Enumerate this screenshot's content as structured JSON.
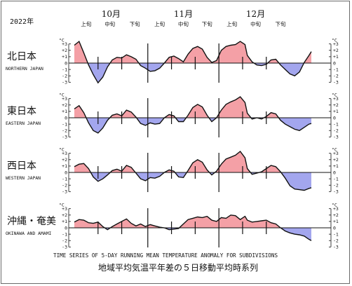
{
  "header": {
    "year": "2022年",
    "months": [
      "10月",
      "11月",
      "12月"
    ],
    "periods": [
      "上旬",
      "中旬",
      "下旬",
      "上旬",
      "中旬",
      "下旬",
      "上旬",
      "中旬",
      "下旬"
    ]
  },
  "axis": {
    "unit": "°C",
    "ticks": [
      "+3",
      "+2",
      "+1",
      "0",
      "-1",
      "-2",
      "-3"
    ]
  },
  "caption": {
    "english": "TIME SERIES OF 5-DAY RUNNING MEAN TEMPERATURE ANOMALY FOR SUBDIVISIONS",
    "japanese": "地域平均気温平年差の５日移動平均時系列"
  },
  "colors": {
    "positive": "#f4a0a6",
    "negative": "#a3a6ee",
    "line": "#111111"
  },
  "chart_data": {
    "type": "area",
    "x_unit": "day index from 2022-10-01",
    "ylim": [
      -3,
      3
    ],
    "yticks": [
      3,
      2,
      1,
      0,
      -1,
      -2,
      -3
    ],
    "grid": false,
    "panels": [
      {
        "name_jp": "北日本",
        "name_en": "NORTHERN JAPAN",
        "points": [
          [
            0,
            2.8
          ],
          [
            2,
            3.4
          ],
          [
            4,
            1.6
          ],
          [
            6,
            -0.3
          ],
          [
            8,
            -1.8
          ],
          [
            10,
            -3.1
          ],
          [
            12,
            -2.2
          ],
          [
            14,
            -0.6
          ],
          [
            16,
            0.5
          ],
          [
            18,
            0.9
          ],
          [
            20,
            0.8
          ],
          [
            22,
            1.3
          ],
          [
            24,
            1.0
          ],
          [
            26,
            0.6
          ],
          [
            28,
            -0.4
          ],
          [
            30,
            -0.8
          ],
          [
            32,
            -1.3
          ],
          [
            34,
            -1.2
          ],
          [
            36,
            -0.8
          ],
          [
            38,
            0.0
          ],
          [
            40,
            0.9
          ],
          [
            42,
            1.1
          ],
          [
            44,
            0.7
          ],
          [
            46,
            0.2
          ],
          [
            48,
            1.4
          ],
          [
            50,
            2.3
          ],
          [
            52,
            2.6
          ],
          [
            54,
            2.2
          ],
          [
            56,
            0.9
          ],
          [
            58,
            0.1
          ],
          [
            60,
            0.4
          ],
          [
            62,
            2.0
          ],
          [
            64,
            2.6
          ],
          [
            66,
            2.8
          ],
          [
            68,
            2.9
          ],
          [
            70,
            3.4
          ],
          [
            72,
            2.9
          ],
          [
            73,
            1.2
          ],
          [
            75,
            0.2
          ],
          [
            77,
            -0.3
          ],
          [
            79,
            -0.4
          ],
          [
            81,
            -0.2
          ],
          [
            83,
            0.5
          ],
          [
            85,
            0.6
          ],
          [
            87,
            -0.3
          ],
          [
            89,
            -1.0
          ],
          [
            91,
            -1.7
          ],
          [
            93,
            -2.0
          ],
          [
            95,
            -1.4
          ],
          [
            97,
            0.1
          ],
          [
            99,
            1.2
          ],
          [
            100,
            1.8
          ]
        ]
      },
      {
        "name_jp": "東日本",
        "name_en": "EASTERN JAPAN",
        "points": [
          [
            0,
            1.4
          ],
          [
            2,
            1.9
          ],
          [
            4,
            0.8
          ],
          [
            6,
            -0.8
          ],
          [
            8,
            -2.0
          ],
          [
            10,
            -2.4
          ],
          [
            12,
            -1.6
          ],
          [
            14,
            -0.4
          ],
          [
            16,
            0.4
          ],
          [
            18,
            0.6
          ],
          [
            20,
            0.3
          ],
          [
            22,
            1.2
          ],
          [
            24,
            0.9
          ],
          [
            26,
            0.1
          ],
          [
            28,
            -0.9
          ],
          [
            30,
            -1.2
          ],
          [
            32,
            -0.8
          ],
          [
            34,
            -1.0
          ],
          [
            36,
            -0.9
          ],
          [
            38,
            0.0
          ],
          [
            40,
            0.5
          ],
          [
            42,
            0.3
          ],
          [
            44,
            -0.6
          ],
          [
            46,
            -0.6
          ],
          [
            48,
            0.4
          ],
          [
            50,
            1.6
          ],
          [
            52,
            2.1
          ],
          [
            54,
            1.7
          ],
          [
            56,
            0.4
          ],
          [
            58,
            -0.6
          ],
          [
            60,
            0.0
          ],
          [
            62,
            1.2
          ],
          [
            64,
            2.1
          ],
          [
            66,
            2.5
          ],
          [
            68,
            2.8
          ],
          [
            70,
            3.3
          ],
          [
            72,
            2.4
          ],
          [
            73,
            0.7
          ],
          [
            75,
            -0.2
          ],
          [
            77,
            0.0
          ],
          [
            79,
            -0.2
          ],
          [
            81,
            0.2
          ],
          [
            83,
            0.8
          ],
          [
            85,
            0.6
          ],
          [
            87,
            -0.4
          ],
          [
            89,
            -1.0
          ],
          [
            91,
            -1.4
          ],
          [
            93,
            -1.8
          ],
          [
            95,
            -2.0
          ],
          [
            97,
            -1.5
          ],
          [
            99,
            -1.0
          ],
          [
            100,
            -0.9
          ]
        ]
      },
      {
        "name_jp": "西日本",
        "name_en": "WESTERN JAPAN",
        "points": [
          [
            0,
            0.9
          ],
          [
            2,
            1.3
          ],
          [
            4,
            1.4
          ],
          [
            6,
            0.6
          ],
          [
            8,
            -0.7
          ],
          [
            10,
            -1.4
          ],
          [
            12,
            -1.0
          ],
          [
            14,
            -0.4
          ],
          [
            16,
            0.3
          ],
          [
            18,
            0.5
          ],
          [
            20,
            0.2
          ],
          [
            22,
            1.1
          ],
          [
            24,
            0.8
          ],
          [
            26,
            -0.1
          ],
          [
            28,
            -1.0
          ],
          [
            30,
            -1.3
          ],
          [
            32,
            -0.8
          ],
          [
            34,
            -0.9
          ],
          [
            36,
            -0.6
          ],
          [
            38,
            0.0
          ],
          [
            40,
            0.4
          ],
          [
            42,
            0.2
          ],
          [
            44,
            -0.7
          ],
          [
            46,
            -0.8
          ],
          [
            48,
            0.3
          ],
          [
            50,
            1.5
          ],
          [
            52,
            2.0
          ],
          [
            54,
            1.6
          ],
          [
            56,
            0.4
          ],
          [
            58,
            -0.4
          ],
          [
            60,
            0.2
          ],
          [
            62,
            1.3
          ],
          [
            64,
            2.1
          ],
          [
            66,
            2.4
          ],
          [
            68,
            2.7
          ],
          [
            70,
            3.3
          ],
          [
            72,
            2.3
          ],
          [
            73,
            0.6
          ],
          [
            75,
            -0.3
          ],
          [
            77,
            -0.1
          ],
          [
            79,
            0.1
          ],
          [
            81,
            0.6
          ],
          [
            83,
            1.1
          ],
          [
            85,
            0.9
          ],
          [
            87,
            0.1
          ],
          [
            89,
            -0.9
          ],
          [
            91,
            -2.1
          ],
          [
            93,
            -2.6
          ],
          [
            95,
            -2.7
          ],
          [
            97,
            -2.8
          ],
          [
            99,
            -2.5
          ],
          [
            100,
            -2.4
          ]
        ]
      },
      {
        "name_jp": "沖縄・奄美",
        "name_en": "OKINAWA AND AMAMI",
        "points": [
          [
            0,
            0.9
          ],
          [
            2,
            1.3
          ],
          [
            4,
            1.2
          ],
          [
            6,
            0.8
          ],
          [
            8,
            0.7
          ],
          [
            10,
            0.9
          ],
          [
            12,
            0.2
          ],
          [
            14,
            -0.3
          ],
          [
            16,
            0.2
          ],
          [
            18,
            0.6
          ],
          [
            20,
            1.0
          ],
          [
            22,
            1.4
          ],
          [
            24,
            0.7
          ],
          [
            26,
            0.3
          ],
          [
            28,
            0.6
          ],
          [
            30,
            0.2
          ],
          [
            32,
            0.5
          ],
          [
            34,
            0.3
          ],
          [
            36,
            0.1
          ],
          [
            38,
            0.0
          ],
          [
            40,
            -0.3
          ],
          [
            42,
            -0.2
          ],
          [
            44,
            -0.1
          ],
          [
            46,
            0.6
          ],
          [
            48,
            1.3
          ],
          [
            50,
            1.5
          ],
          [
            52,
            1.7
          ],
          [
            54,
            1.6
          ],
          [
            56,
            1.8
          ],
          [
            58,
            1.2
          ],
          [
            60,
            1.0
          ],
          [
            62,
            1.6
          ],
          [
            64,
            1.5
          ],
          [
            66,
            2.0
          ],
          [
            68,
            1.9
          ],
          [
            70,
            1.3
          ],
          [
            72,
            1.8
          ],
          [
            73,
            1.2
          ],
          [
            75,
            0.9
          ],
          [
            77,
            1.0
          ],
          [
            79,
            1.1
          ],
          [
            81,
            1.2
          ],
          [
            83,
            0.8
          ],
          [
            85,
            0.6
          ],
          [
            87,
            0.0
          ],
          [
            89,
            -0.5
          ],
          [
            91,
            -0.8
          ],
          [
            93,
            -1.0
          ],
          [
            95,
            -1.1
          ],
          [
            97,
            -1.3
          ],
          [
            99,
            -1.8
          ],
          [
            100,
            -2.0
          ]
        ]
      }
    ]
  }
}
